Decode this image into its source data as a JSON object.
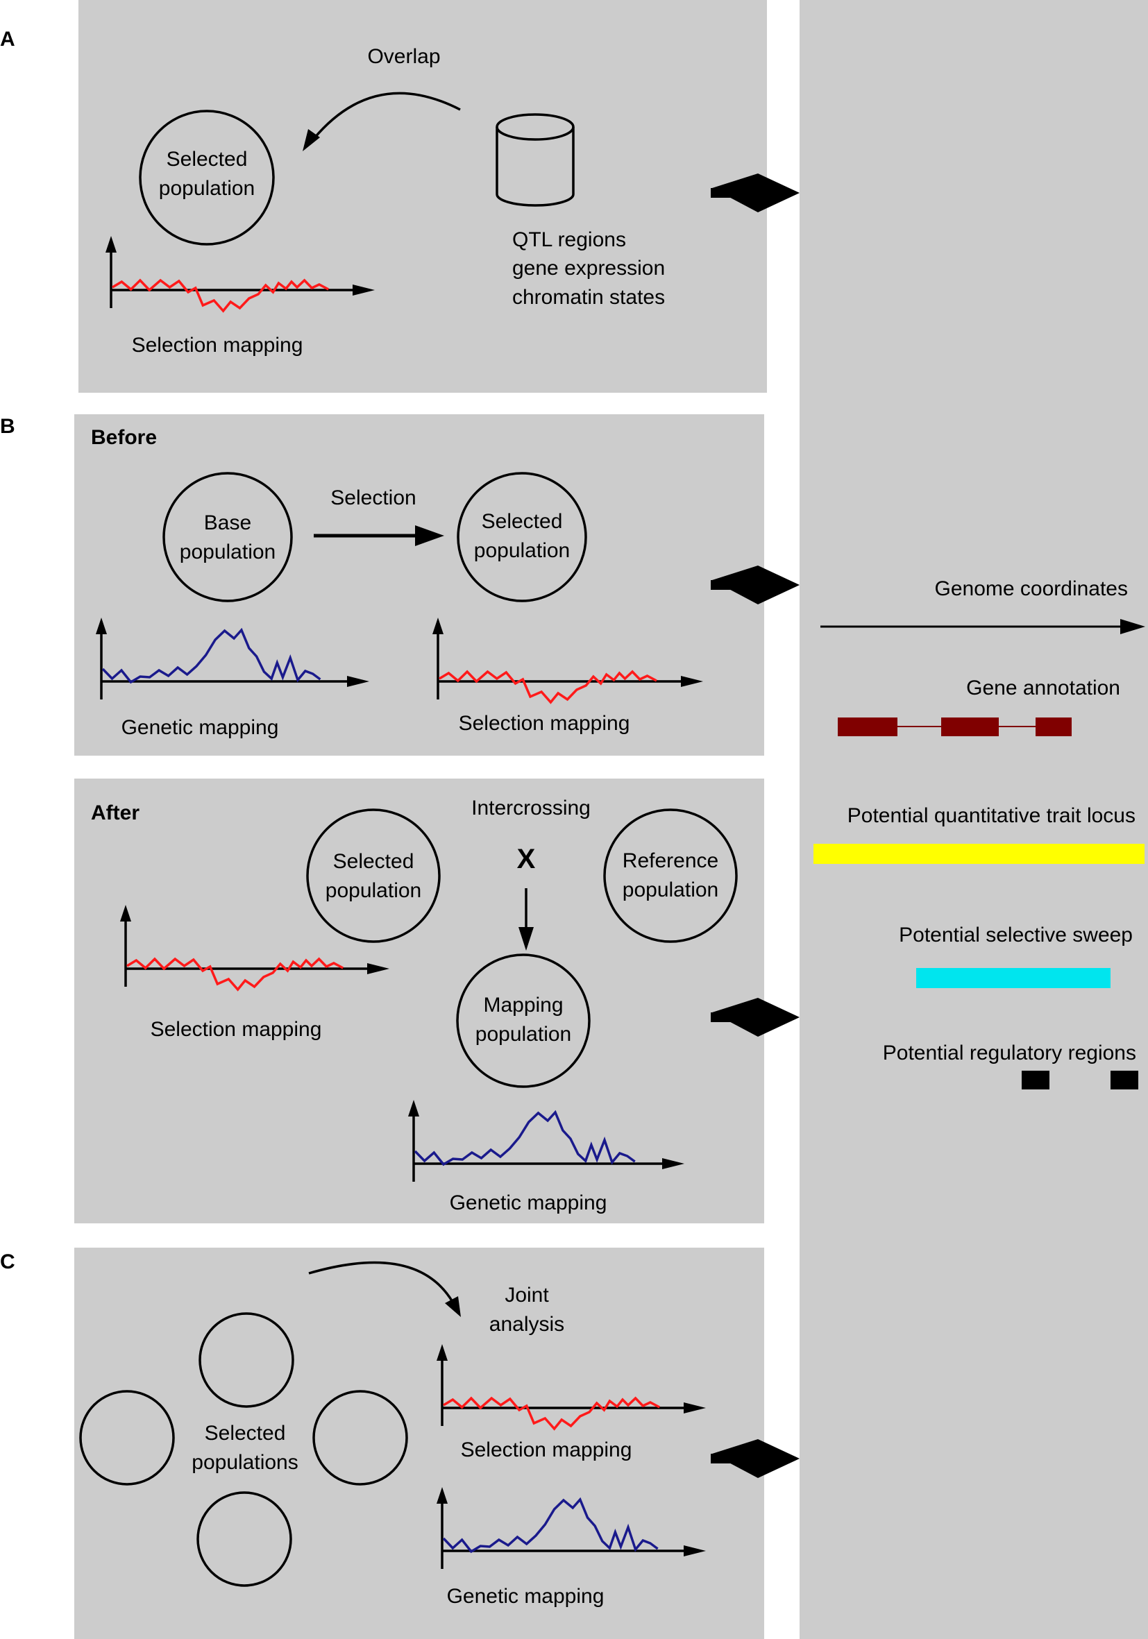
{
  "panels": {
    "A": {
      "letter": "A",
      "overlap": "Overlap",
      "selected_population": [
        "Selected",
        "population"
      ],
      "database_labels": [
        "QTL regions",
        "gene expression",
        "chromatin states"
      ],
      "selection_mapping": "Selection mapping"
    },
    "B": {
      "letter": "B",
      "before": {
        "title": "Before",
        "selection": "Selection",
        "base_population": [
          "Base",
          "population"
        ],
        "selected_population": [
          "Selected",
          "population"
        ],
        "genetic_mapping": "Genetic mapping",
        "selection_mapping": "Selection mapping"
      },
      "after": {
        "title": "After",
        "intercrossing": "Intercrossing",
        "cross_symbol": "X",
        "selected_population": [
          "Selected",
          "population"
        ],
        "reference_population": [
          "Reference",
          "population"
        ],
        "mapping_population": [
          "Mapping",
          "population"
        ],
        "selection_mapping": "Selection mapping",
        "genetic_mapping": "Genetic mapping"
      }
    },
    "C": {
      "letter": "C",
      "joint_analysis": [
        "Joint",
        "analysis"
      ],
      "selected_populations": [
        "Selected",
        "populations"
      ],
      "selection_mapping": "Selection mapping",
      "genetic_mapping": "Genetic mapping"
    }
  },
  "genome_panel": {
    "genome_coordinates": "Genome coordinates",
    "gene_annotation": "Gene annotation",
    "potential_qtl": "Potential quantitative trait locus",
    "potential_sweep": "Potential selective sweep",
    "potential_regulatory": "Potential regulatory regions"
  },
  "colors": {
    "panel_background": "#cccccc",
    "selection_signal": "#ff1a1a",
    "genetic_signal": "#1a1a8c",
    "gene_exon": "#800000",
    "qtl_bar": "#ffff00",
    "sweep_bar": "#00e5ee",
    "regulatory_block": "#000000"
  }
}
